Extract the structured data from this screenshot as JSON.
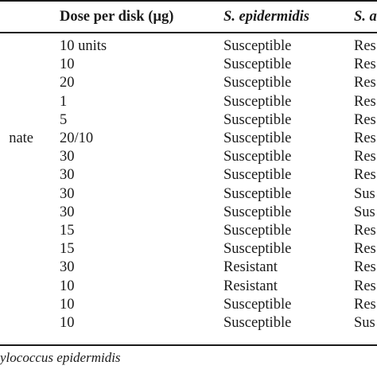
{
  "table": {
    "headers": {
      "dose": "Dose per disk (µg)",
      "epidermidis": "S. epidermidis",
      "aureus": "S. a"
    },
    "rows": [
      {
        "drug": "",
        "dose": "10 units",
        "epidermidis": "Susceptible",
        "aureus": "Res"
      },
      {
        "drug": "",
        "dose": "10",
        "epidermidis": "Susceptible",
        "aureus": "Res"
      },
      {
        "drug": "",
        "dose": "20",
        "epidermidis": "Susceptible",
        "aureus": "Res"
      },
      {
        "drug": "",
        "dose": "1",
        "epidermidis": "Susceptible",
        "aureus": "Res"
      },
      {
        "drug": "",
        "dose": "5",
        "epidermidis": "Susceptible",
        "aureus": "Res"
      },
      {
        "drug": "nate",
        "dose": "20/10",
        "epidermidis": "Susceptible",
        "aureus": "Res"
      },
      {
        "drug": "",
        "dose": "30",
        "epidermidis": "Susceptible",
        "aureus": "Res"
      },
      {
        "drug": "",
        "dose": "30",
        "epidermidis": "Susceptible",
        "aureus": "Res"
      },
      {
        "drug": "",
        "dose": "30",
        "epidermidis": "Susceptible",
        "aureus": "Sus"
      },
      {
        "drug": "",
        "dose": "30",
        "epidermidis": "Susceptible",
        "aureus": "Sus"
      },
      {
        "drug": "",
        "dose": "15",
        "epidermidis": "Susceptible",
        "aureus": "Res"
      },
      {
        "drug": "",
        "dose": "15",
        "epidermidis": "Susceptible",
        "aureus": "Res"
      },
      {
        "drug": "",
        "dose": "30",
        "epidermidis": "Resistant",
        "aureus": "Res"
      },
      {
        "drug": "",
        "dose": "10",
        "epidermidis": "Resistant",
        "aureus": "Res"
      },
      {
        "drug": "",
        "dose": "10",
        "epidermidis": "Susceptible",
        "aureus": "Res"
      },
      {
        "drug": "",
        "dose": "10",
        "epidermidis": "Susceptible",
        "aureus": "Sus"
      }
    ]
  },
  "footnote": "ylococcus epidermidis"
}
